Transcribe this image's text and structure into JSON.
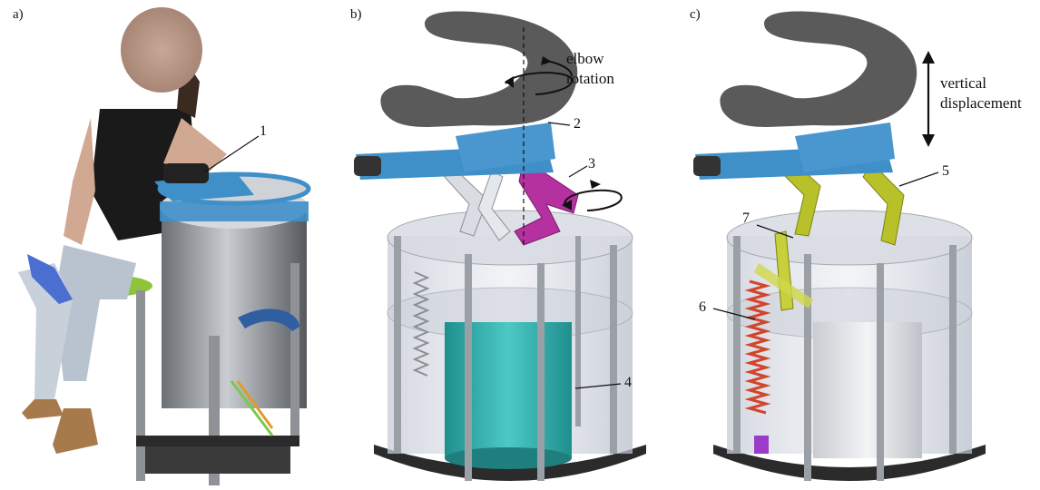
{
  "panels": [
    {
      "label": "a)"
    },
    {
      "label": "b)"
    },
    {
      "label": "c)"
    }
  ],
  "callouts": {
    "n1": "1",
    "n2": "2",
    "n3": "3",
    "n4": "4",
    "n5": "5",
    "n6": "6",
    "n7": "7"
  },
  "annotations": {
    "elbow_line1": "elbow",
    "elbow_line2": "rotation",
    "vertical_line1": "vertical",
    "vertical_line2": "displacement"
  },
  "colors": {
    "housing_blue": "#3f8fc9",
    "arm_rest_gray": "#5a5a5a",
    "link_magenta": "#b5319f",
    "link_yellow": "#b9c12a",
    "cylinder_teal": "#2fb3b0",
    "spring_red": "#d2452d",
    "steel": "#9aa0a6"
  }
}
